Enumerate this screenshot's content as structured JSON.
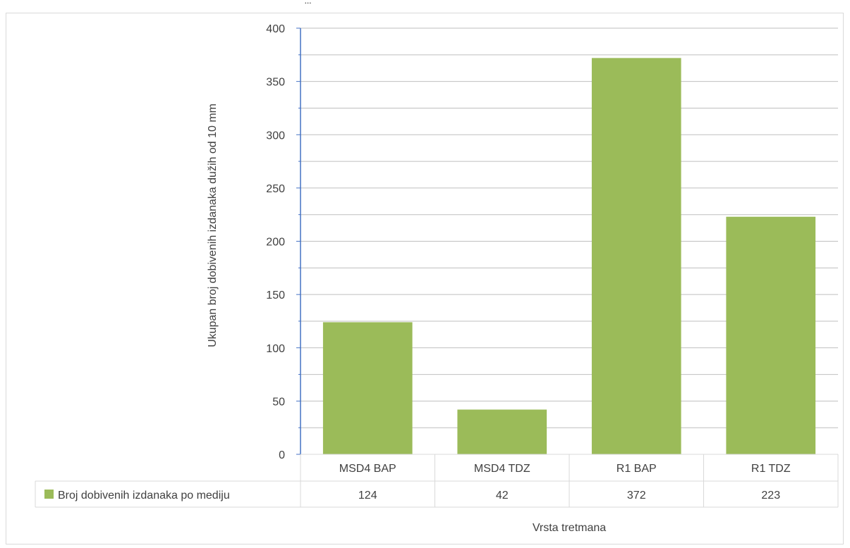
{
  "caption": "...",
  "chart_data": {
    "type": "bar",
    "categories": [
      "MSD4 BAP",
      "MSD4 TDZ",
      "R1 BAP",
      "R1 TDZ"
    ],
    "series": [
      {
        "name": "Broj dobivenih izdanaka po mediju",
        "values": [
          124,
          42,
          372,
          223
        ],
        "color": "#9bbb59"
      }
    ],
    "xlabel": "Vrsta tretmana",
    "ylabel": "Ukupan broj dobivenih izdanaka dužih od 10 mm",
    "ylim": [
      0,
      400
    ],
    "yticks": [
      0,
      50,
      100,
      150,
      200,
      250,
      300,
      350,
      400
    ],
    "grid": true,
    "legend": "data-table",
    "colors": {
      "bar": "#9bbb59",
      "grid": "#bfbfbf",
      "axis": "#4472c4",
      "table_border": "#d9d9d9"
    }
  }
}
